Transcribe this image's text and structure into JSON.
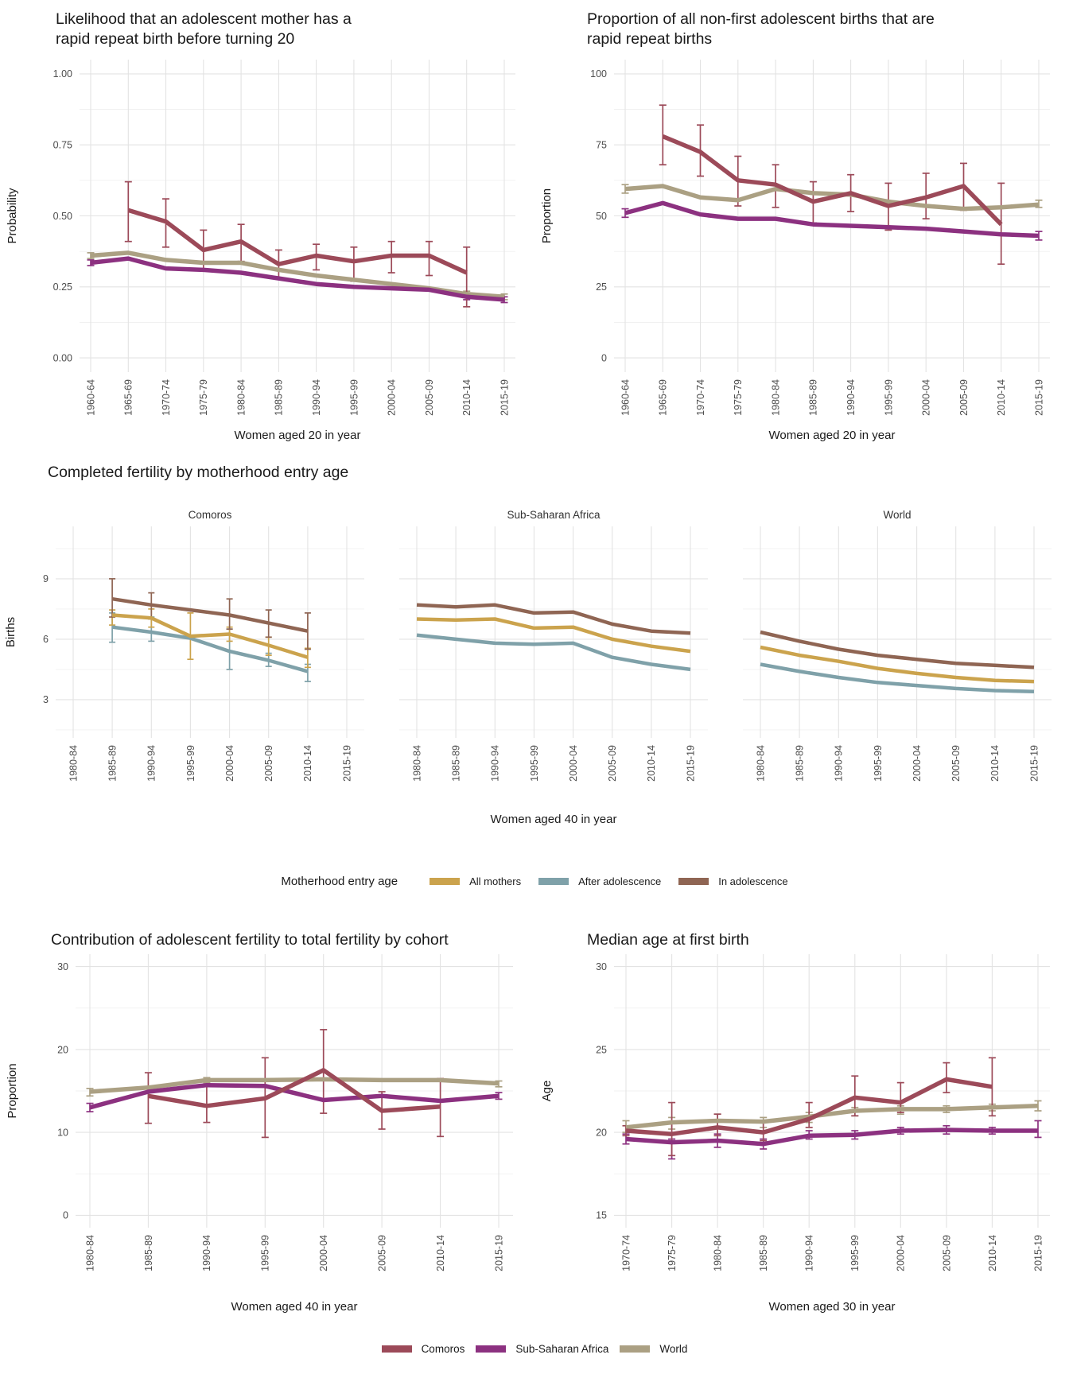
{
  "colors": {
    "comoros": "#9C4A59",
    "sub_saharan_africa": "#8C3180",
    "world": "#ABA083",
    "all_mothers": "#CBA34D",
    "after_adolescence": "#7FA1A9",
    "in_adolescence": "#8F6553",
    "grid_major": "#E3E3E3",
    "grid_minor": "#F1F1F1",
    "title_text": "#1A1A1A",
    "axis_text": "#4D4D4D",
    "strip_text": "#333333"
  },
  "legend_entry_age": {
    "title": "Motherhood entry age",
    "items": [
      {
        "label": "All mothers",
        "color_key": "all_mothers"
      },
      {
        "label": "After adolescence",
        "color_key": "after_adolescence"
      },
      {
        "label": "In adolescence",
        "color_key": "in_adolescence"
      }
    ]
  },
  "legend_regions": {
    "items": [
      {
        "label": "Comoros",
        "color_key": "comoros"
      },
      {
        "label": "Sub-Saharan Africa",
        "color_key": "sub_saharan_africa"
      },
      {
        "label": "World",
        "color_key": "world"
      }
    ]
  },
  "chart_data": [
    {
      "id": "rapid-repeat-probability",
      "type": "line",
      "title_lines": [
        "Likelihood that an adolescent mother has a",
        "rapid repeat birth before turning 20"
      ],
      "xlabel": "Women aged 20 in year",
      "ylabel": "Probability",
      "categories": [
        "1960-64",
        "1965-69",
        "1970-74",
        "1975-79",
        "1980-84",
        "1985-89",
        "1990-94",
        "1995-99",
        "2000-04",
        "2005-09",
        "2010-14",
        "2015-19"
      ],
      "ydomain": [
        -0.05,
        1.05
      ],
      "yticks": [
        0,
        0.25,
        0.5,
        0.75,
        1
      ],
      "ytick_labels": [
        "0.00",
        "0.25",
        "0.50",
        "0.75",
        "1.00"
      ],
      "grid": true,
      "legend_position": "bottom-shared",
      "series": [
        {
          "name": "World",
          "color_key": "world",
          "values": [
            0.36,
            0.37,
            0.345,
            0.335,
            0.335,
            0.31,
            0.29,
            0.275,
            0.26,
            0.245,
            0.225,
            0.215
          ],
          "errors": [
            [
              0.35,
              0.37
            ],
            null,
            null,
            null,
            null,
            null,
            null,
            null,
            null,
            null,
            [
              0.215,
              0.235
            ],
            [
              0.205,
              0.225
            ]
          ]
        },
        {
          "name": "Sub-Saharan Africa",
          "color_key": "sub_saharan_africa",
          "values": [
            0.335,
            0.35,
            0.315,
            0.31,
            0.3,
            0.28,
            0.26,
            0.25,
            0.245,
            0.24,
            0.215,
            0.205
          ],
          "errors": [
            [
              0.325,
              0.345
            ],
            null,
            null,
            null,
            null,
            null,
            null,
            null,
            null,
            null,
            [
              0.205,
              0.225
            ],
            [
              0.195,
              0.215
            ]
          ]
        },
        {
          "name": "Comoros",
          "color_key": "comoros",
          "values": [
            null,
            0.52,
            0.48,
            0.38,
            0.41,
            0.33,
            0.36,
            0.34,
            0.36,
            0.36,
            0.3,
            null
          ],
          "errors": [
            null,
            [
              0.41,
              0.62
            ],
            [
              0.39,
              0.56
            ],
            [
              0.31,
              0.45
            ],
            [
              0.34,
              0.47
            ],
            [
              0.28,
              0.38
            ],
            [
              0.31,
              0.4
            ],
            [
              0.27,
              0.39
            ],
            [
              0.3,
              0.41
            ],
            [
              0.29,
              0.41
            ],
            [
              0.18,
              0.39
            ],
            null
          ]
        }
      ]
    },
    {
      "id": "rapid-repeat-share",
      "type": "line",
      "title_lines": [
        "Proportion of all non-first adolescent births that are",
        "rapid repeat births"
      ],
      "xlabel": "Women aged 20 in year",
      "ylabel": "Proportion",
      "categories": [
        "1960-64",
        "1965-69",
        "1970-74",
        "1975-79",
        "1980-84",
        "1985-89",
        "1990-94",
        "1995-99",
        "2000-04",
        "2005-09",
        "2010-14",
        "2015-19"
      ],
      "ydomain": [
        -5,
        105
      ],
      "yticks": [
        0,
        25,
        50,
        75,
        100
      ],
      "ytick_labels": [
        "0",
        "25",
        "50",
        "75",
        "100"
      ],
      "grid": true,
      "legend_position": "bottom-shared",
      "series": [
        {
          "name": "World",
          "color_key": "world",
          "values": [
            59.5,
            60.5,
            56.5,
            55.5,
            59.5,
            58,
            57.5,
            55,
            53.5,
            52.5,
            53,
            54
          ],
          "errors": [
            [
              58,
              61
            ],
            null,
            null,
            null,
            null,
            null,
            null,
            null,
            null,
            null,
            null,
            [
              53,
              55.5
            ]
          ]
        },
        {
          "name": "Sub-Saharan Africa",
          "color_key": "sub_saharan_africa",
          "values": [
            51,
            54.5,
            50.5,
            49,
            49,
            47,
            46.5,
            46,
            45.5,
            44.5,
            43.5,
            43
          ],
          "errors": [
            [
              49.5,
              52.5
            ],
            null,
            null,
            null,
            null,
            null,
            null,
            null,
            null,
            null,
            null,
            [
              41.5,
              44.5
            ]
          ]
        },
        {
          "name": "Comoros",
          "color_key": "comoros",
          "values": [
            null,
            78,
            72.5,
            62.5,
            61,
            55,
            58,
            53.5,
            56.5,
            60.5,
            47,
            null
          ],
          "errors": [
            null,
            [
              68,
              89
            ],
            [
              64,
              82
            ],
            [
              53.5,
              71
            ],
            [
              53,
              68
            ],
            [
              47.5,
              62
            ],
            [
              51.5,
              64.5
            ],
            [
              45,
              61.5
            ],
            [
              49,
              65
            ],
            [
              52,
              68.5
            ],
            [
              33,
              61.5
            ],
            null
          ]
        }
      ]
    },
    {
      "id": "completed-fertility",
      "type": "line",
      "faceted": true,
      "title_lines": [
        "Completed fertility by motherhood entry age"
      ],
      "xlabel": "Women aged 40 in year",
      "ylabel": "Births",
      "categories": [
        "1980-84",
        "1985-89",
        "1990-94",
        "1995-99",
        "2000-04",
        "2005-09",
        "2010-14",
        "2015-19"
      ],
      "ydomain": [
        1.1,
        11.6
      ],
      "yticks": [
        3,
        6,
        9
      ],
      "ytick_labels": [
        "3",
        "6",
        "9"
      ],
      "grid": true,
      "legend_position": "bottom",
      "legend_title": "Motherhood entry age",
      "facets": [
        {
          "label": "Comoros",
          "series": [
            {
              "name": "After adolescence",
              "color_key": "after_adolescence",
              "values": [
                null,
                6.6,
                6.35,
                6.05,
                5.4,
                4.95,
                4.4,
                null
              ],
              "errors": [
                null,
                [
                  5.85,
                  7.3
                ],
                [
                  5.9,
                  7.1
                ],
                null,
                [
                  4.5,
                  6.5
                ],
                [
                  4.65,
                  5.3
                ],
                [
                  3.9,
                  4.75
                ],
                null
              ]
            },
            {
              "name": "All mothers",
              "color_key": "all_mothers",
              "values": [
                null,
                7.2,
                7.05,
                6.15,
                6.25,
                5.7,
                5.1,
                null
              ],
              "errors": [
                null,
                [
                  6.7,
                  7.45
                ],
                [
                  6.6,
                  7.5
                ],
                [
                  5.0,
                  7.3
                ],
                [
                  5.9,
                  6.6
                ],
                [
                  5.2,
                  6.1
                ],
                [
                  4.6,
                  5.55
                ],
                null
              ]
            },
            {
              "name": "In adolescence",
              "color_key": "in_adolescence",
              "values": [
                null,
                8.0,
                7.7,
                7.45,
                7.2,
                6.8,
                6.4,
                null
              ],
              "errors": [
                null,
                [
                  7.1,
                  9.0
                ],
                [
                  7.0,
                  8.3
                ],
                null,
                [
                  6.5,
                  8.0
                ],
                [
                  6.1,
                  7.45
                ],
                [
                  5.5,
                  7.3
                ],
                null
              ]
            }
          ]
        },
        {
          "label": "Sub-Saharan Africa",
          "series": [
            {
              "name": "After adolescence",
              "color_key": "after_adolescence",
              "values": [
                6.2,
                6.0,
                5.8,
                5.75,
                5.8,
                5.1,
                4.75,
                4.5
              ],
              "errors": null
            },
            {
              "name": "All mothers",
              "color_key": "all_mothers",
              "values": [
                7.0,
                6.95,
                7.0,
                6.55,
                6.6,
                6.0,
                5.65,
                5.4
              ],
              "errors": null
            },
            {
              "name": "In adolescence",
              "color_key": "in_adolescence",
              "values": [
                7.7,
                7.6,
                7.7,
                7.3,
                7.35,
                6.75,
                6.4,
                6.3
              ],
              "errors": null
            }
          ]
        },
        {
          "label": "World",
          "series": [
            {
              "name": "After adolescence",
              "color_key": "after_adolescence",
              "values": [
                4.75,
                4.4,
                4.1,
                3.85,
                3.7,
                3.55,
                3.45,
                3.4
              ],
              "errors": null
            },
            {
              "name": "All mothers",
              "color_key": "all_mothers",
              "values": [
                5.6,
                5.2,
                4.9,
                4.55,
                4.3,
                4.1,
                3.95,
                3.9
              ],
              "errors": null
            },
            {
              "name": "In adolescence",
              "color_key": "in_adolescence",
              "values": [
                6.35,
                5.9,
                5.5,
                5.2,
                5.0,
                4.8,
                4.7,
                4.6
              ],
              "errors": null
            }
          ]
        }
      ]
    },
    {
      "id": "adolescent-contribution",
      "type": "line",
      "title_lines": [
        "Contribution of adolescent fertility to total fertility by cohort"
      ],
      "xlabel": "Women aged 40 in year",
      "ylabel": "Proportion",
      "categories": [
        "1980-84",
        "1985-89",
        "1990-94",
        "1995-99",
        "2000-04",
        "2005-09",
        "2010-14",
        "2015-19"
      ],
      "ydomain": [
        -1.5,
        31.5
      ],
      "yticks": [
        0,
        10,
        20,
        30
      ],
      "ytick_labels": [
        "0",
        "10",
        "20",
        "30"
      ],
      "grid": true,
      "legend_position": "bottom-shared",
      "series": [
        {
          "name": "World",
          "color_key": "world",
          "values": [
            14.9,
            15.4,
            16.3,
            16.3,
            16.4,
            16.3,
            16.3,
            15.9
          ],
          "errors": [
            [
              14.4,
              15.3
            ],
            null,
            [
              16.0,
              16.6
            ],
            null,
            null,
            null,
            null,
            [
              15.5,
              16.2
            ]
          ]
        },
        {
          "name": "Sub-Saharan Africa",
          "color_key": "sub_saharan_africa",
          "values": [
            13.0,
            14.9,
            15.7,
            15.6,
            13.9,
            14.4,
            13.8,
            14.4
          ],
          "errors": [
            [
              12.5,
              13.5
            ],
            null,
            null,
            null,
            null,
            null,
            null,
            [
              14.0,
              14.8
            ]
          ]
        },
        {
          "name": "Comoros",
          "color_key": "comoros",
          "values": [
            null,
            14.4,
            13.2,
            14.1,
            17.5,
            12.6,
            13.1,
            null
          ],
          "errors": [
            null,
            [
              11.1,
              17.2
            ],
            [
              11.2,
              15.7
            ],
            [
              9.4,
              19.0
            ],
            [
              12.3,
              22.4
            ],
            [
              10.4,
              14.9
            ],
            [
              9.5,
              16.5
            ],
            null
          ]
        }
      ]
    },
    {
      "id": "median-age-first-birth",
      "type": "line",
      "title_lines": [
        "Median age at first birth"
      ],
      "xlabel": "Women aged 30 in year",
      "ylabel": "Age",
      "categories": [
        "1970-74",
        "1975-79",
        "1980-84",
        "1985-89",
        "1990-94",
        "1995-99",
        "2000-04",
        "2005-09",
        "2010-14",
        "2015-19"
      ],
      "ydomain": [
        14.25,
        30.75
      ],
      "yticks": [
        15,
        20,
        25,
        30
      ],
      "ytick_labels": [
        "15",
        "20",
        "25",
        "30"
      ],
      "grid": true,
      "legend_position": "bottom-shared",
      "series": [
        {
          "name": "World",
          "color_key": "world",
          "values": [
            20.3,
            20.6,
            20.7,
            20.65,
            20.95,
            21.3,
            21.4,
            21.4,
            21.5,
            21.6
          ],
          "errors": [
            [
              20.0,
              20.7
            ],
            [
              20.2,
              20.9
            ],
            [
              20.3,
              21.1
            ],
            [
              20.3,
              20.9
            ],
            [
              20.6,
              21.2
            ],
            [
              21.0,
              21.5
            ],
            [
              21.1,
              21.6
            ],
            [
              21.2,
              21.6
            ],
            [
              21.3,
              21.7
            ],
            [
              21.3,
              21.9
            ]
          ]
        },
        {
          "name": "Sub-Saharan Africa",
          "color_key": "sub_saharan_africa",
          "values": [
            19.6,
            19.4,
            19.5,
            19.3,
            19.8,
            19.85,
            20.1,
            20.15,
            20.1,
            20.1
          ],
          "errors": [
            [
              19.3,
              19.9
            ],
            [
              18.4,
              19.6
            ],
            [
              19.1,
              19.9
            ],
            [
              19.0,
              19.6
            ],
            [
              19.6,
              20.1
            ],
            [
              19.6,
              20.1
            ],
            [
              19.9,
              20.3
            ],
            [
              19.9,
              20.4
            ],
            [
              19.9,
              20.3
            ],
            [
              19.7,
              20.7
            ]
          ]
        },
        {
          "name": "Comoros",
          "color_key": "comoros",
          "values": [
            20.1,
            19.9,
            20.3,
            20.0,
            20.8,
            22.1,
            21.8,
            23.2,
            22.75,
            null
          ],
          "errors": [
            [
              19.8,
              20.4
            ],
            [
              18.6,
              21.8
            ],
            [
              19.8,
              21.1
            ],
            [
              19.5,
              20.6
            ],
            [
              20.3,
              21.8
            ],
            [
              21.0,
              23.4
            ],
            [
              21.2,
              23.0
            ],
            [
              22.4,
              24.2
            ],
            [
              21.0,
              24.5
            ],
            null
          ]
        }
      ]
    }
  ]
}
